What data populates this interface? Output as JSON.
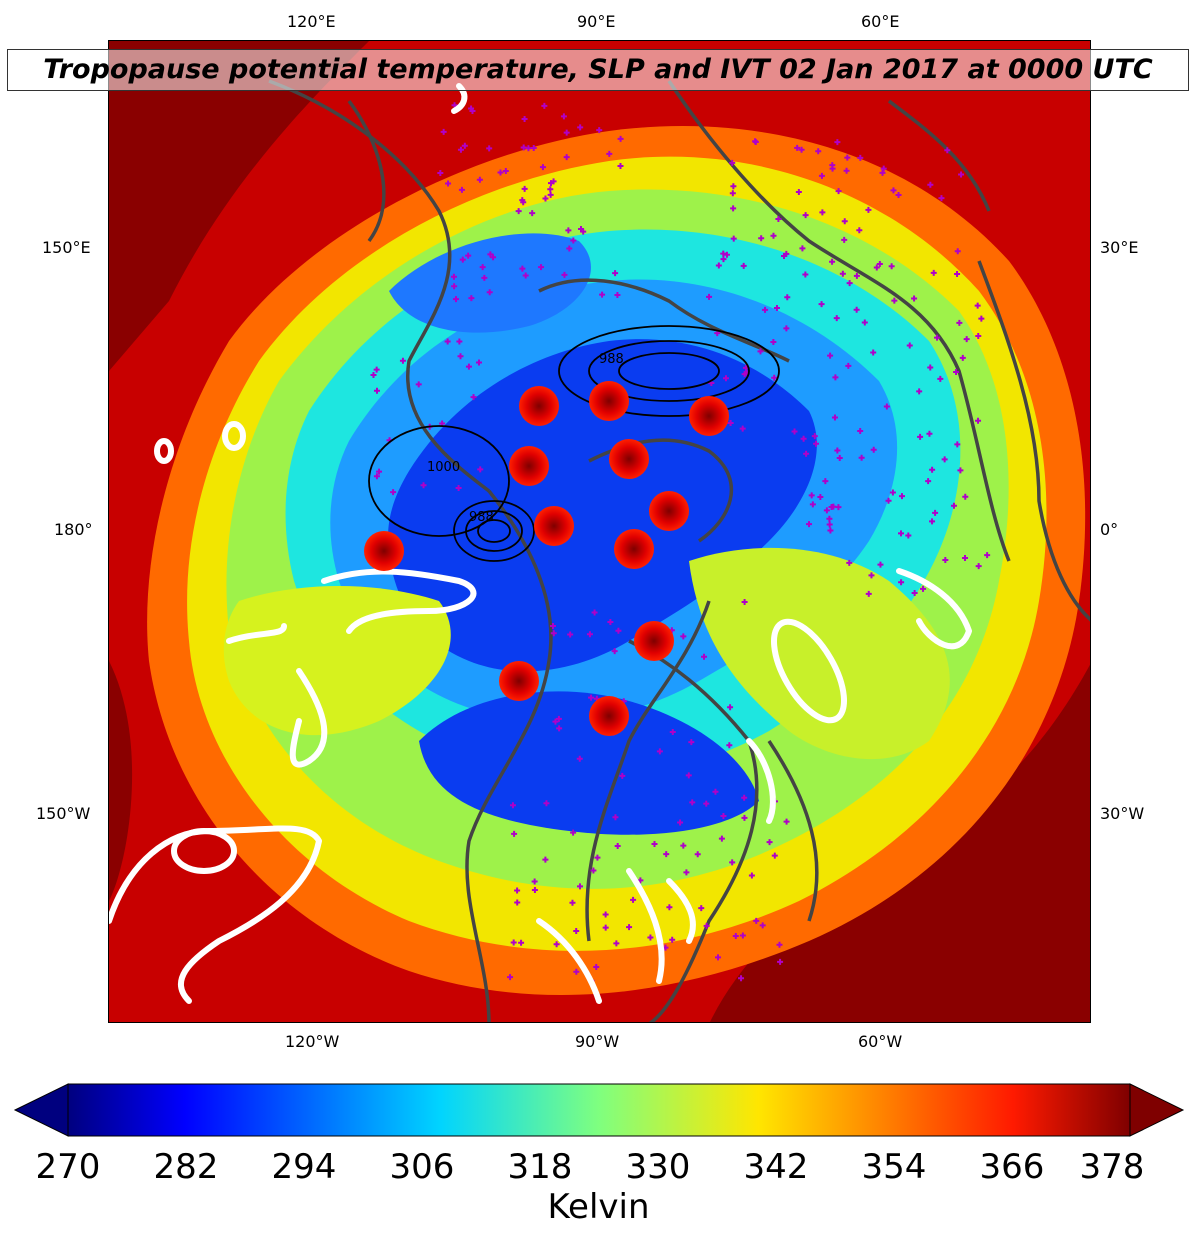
{
  "title": "Tropopause potential temperature, SLP and IVT 02 Jan 2017 at 0000 UTC",
  "longitude_labels": {
    "top": [
      "120°E",
      "90°E",
      "60°E"
    ],
    "bottom": [
      "120°W",
      "90°W",
      "60°W"
    ],
    "left": [
      "150°E",
      "180°",
      "150°W"
    ],
    "right": [
      "30°E",
      "0°",
      "30°W"
    ]
  },
  "slp_contour_labels": [
    "988",
    "1000",
    "988"
  ],
  "colorbar": {
    "ticks": [
      "270",
      "282",
      "294",
      "306",
      "318",
      "330",
      "342",
      "354",
      "366",
      "378"
    ],
    "label": "Kelvin",
    "colormap": "jet",
    "extend": "both",
    "vmin": 270,
    "vmax": 378
  },
  "colors": {
    "coastlines": "#444444",
    "ivt_contours": "#ffffff",
    "slp_contours": "#000000",
    "station_markers": "#b000c8",
    "low_markers": "#e00000"
  }
}
